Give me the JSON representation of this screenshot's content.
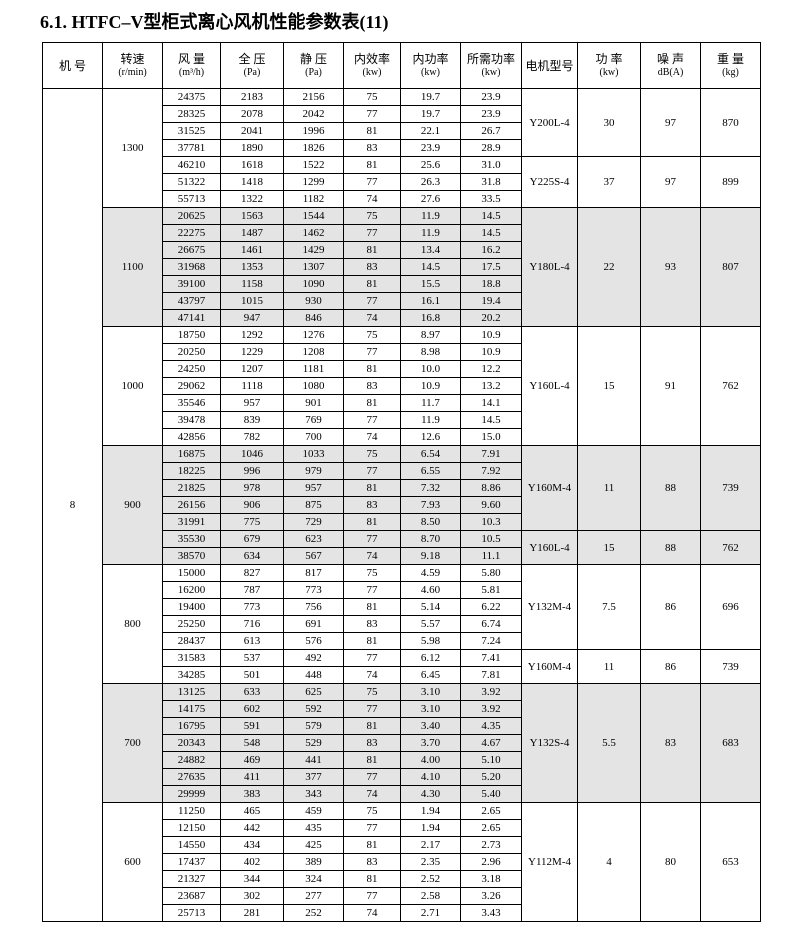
{
  "title": "6.1. HTFC–V型柜式离心风机性能参数表(11)",
  "table": {
    "header": [
      [
        "机 号"
      ],
      [
        "转速",
        "(r/min)"
      ],
      [
        "风 量",
        "(m³/h)"
      ],
      [
        "全 压",
        "(Pa)"
      ],
      [
        "静 压",
        "(Pa)"
      ],
      [
        "内效率",
        "(kw)"
      ],
      [
        "内功率",
        "(kw)"
      ],
      [
        "所需功率",
        "(kw)"
      ],
      [
        "电机型号"
      ],
      [
        "功 率",
        "(kw)"
      ],
      [
        "噪 声",
        "dB(A)"
      ],
      [
        "重 量",
        "(kg)"
      ]
    ],
    "machine": "8",
    "groups": [
      {
        "speed": "1300",
        "motors": [
          {
            "model": "Y200L-4",
            "power": "30",
            "noise": "97",
            "weight": "870",
            "rows": [
              [
                "24375",
                "2183",
                "2156",
                "75",
                "19.7",
                "23.9"
              ],
              [
                "28325",
                "2078",
                "2042",
                "77",
                "19.7",
                "23.9"
              ],
              [
                "31525",
                "2041",
                "1996",
                "81",
                "22.1",
                "26.7"
              ],
              [
                "37781",
                "1890",
                "1826",
                "83",
                "23.9",
                "28.9"
              ]
            ]
          },
          {
            "model": "Y225S-4",
            "power": "37",
            "noise": "97",
            "weight": "899",
            "rows": [
              [
                "46210",
                "1618",
                "1522",
                "81",
                "25.6",
                "31.0"
              ],
              [
                "51322",
                "1418",
                "1299",
                "77",
                "26.3",
                "31.8"
              ],
              [
                "55713",
                "1322",
                "1182",
                "74",
                "27.6",
                "33.5"
              ]
            ]
          }
        ]
      },
      {
        "speed": "1100",
        "motors": [
          {
            "model": "Y180L-4",
            "power": "22",
            "noise": "93",
            "weight": "807",
            "rows": [
              [
                "20625",
                "1563",
                "1544",
                "75",
                "11.9",
                "14.5"
              ],
              [
                "22275",
                "1487",
                "1462",
                "77",
                "11.9",
                "14.5"
              ],
              [
                "26675",
                "1461",
                "1429",
                "81",
                "13.4",
                "16.2"
              ],
              [
                "31968",
                "1353",
                "1307",
                "83",
                "14.5",
                "17.5"
              ],
              [
                "39100",
                "1158",
                "1090",
                "81",
                "15.5",
                "18.8"
              ],
              [
                "43797",
                "1015",
                "930",
                "77",
                "16.1",
                "19.4"
              ],
              [
                "47141",
                "947",
                "846",
                "74",
                "16.8",
                "20.2"
              ]
            ]
          }
        ]
      },
      {
        "speed": "1000",
        "motors": [
          {
            "model": "Y160L-4",
            "power": "15",
            "noise": "91",
            "weight": "762",
            "rows": [
              [
                "18750",
                "1292",
                "1276",
                "75",
                "8.97",
                "10.9"
              ],
              [
                "20250",
                "1229",
                "1208",
                "77",
                "8.98",
                "10.9"
              ],
              [
                "24250",
                "1207",
                "1181",
                "81",
                "10.0",
                "12.2"
              ],
              [
                "29062",
                "1118",
                "1080",
                "83",
                "10.9",
                "13.2"
              ],
              [
                "35546",
                "957",
                "901",
                "81",
                "11.7",
                "14.1"
              ],
              [
                "39478",
                "839",
                "769",
                "77",
                "11.9",
                "14.5"
              ],
              [
                "42856",
                "782",
                "700",
                "74",
                "12.6",
                "15.0"
              ]
            ]
          }
        ]
      },
      {
        "speed": "900",
        "motors": [
          {
            "model": "Y160M-4",
            "power": "11",
            "noise": "88",
            "weight": "739",
            "rows": [
              [
                "16875",
                "1046",
                "1033",
                "75",
                "6.54",
                "7.91"
              ],
              [
                "18225",
                "996",
                "979",
                "77",
                "6.55",
                "7.92"
              ],
              [
                "21825",
                "978",
                "957",
                "81",
                "7.32",
                "8.86"
              ],
              [
                "26156",
                "906",
                "875",
                "83",
                "7.93",
                "9.60"
              ],
              [
                "31991",
                "775",
                "729",
                "81",
                "8.50",
                "10.3"
              ]
            ]
          },
          {
            "model": "Y160L-4",
            "power": "15",
            "noise": "88",
            "weight": "762",
            "rows": [
              [
                "35530",
                "679",
                "623",
                "77",
                "8.70",
                "10.5"
              ],
              [
                "38570",
                "634",
                "567",
                "74",
                "9.18",
                "11.1"
              ]
            ]
          }
        ]
      },
      {
        "speed": "800",
        "motors": [
          {
            "model": "Y132M-4",
            "power": "7.5",
            "noise": "86",
            "weight": "696",
            "rows": [
              [
                "15000",
                "827",
                "817",
                "75",
                "4.59",
                "5.80"
              ],
              [
                "16200",
                "787",
                "773",
                "77",
                "4.60",
                "5.81"
              ],
              [
                "19400",
                "773",
                "756",
                "81",
                "5.14",
                "6.22"
              ],
              [
                "25250",
                "716",
                "691",
                "83",
                "5.57",
                "6.74"
              ],
              [
                "28437",
                "613",
                "576",
                "81",
                "5.98",
                "7.24"
              ]
            ]
          },
          {
            "model": "Y160M-4",
            "power": "11",
            "noise": "86",
            "weight": "739",
            "rows": [
              [
                "31583",
                "537",
                "492",
                "77",
                "6.12",
                "7.41"
              ],
              [
                "34285",
                "501",
                "448",
                "74",
                "6.45",
                "7.81"
              ]
            ]
          }
        ]
      },
      {
        "speed": "700",
        "motors": [
          {
            "model": "Y132S-4",
            "power": "5.5",
            "noise": "83",
            "weight": "683",
            "rows": [
              [
                "13125",
                "633",
                "625",
                "75",
                "3.10",
                "3.92"
              ],
              [
                "14175",
                "602",
                "592",
                "77",
                "3.10",
                "3.92"
              ],
              [
                "16795",
                "591",
                "579",
                "81",
                "3.40",
                "4.35"
              ],
              [
                "20343",
                "548",
                "529",
                "83",
                "3.70",
                "4.67"
              ],
              [
                "24882",
                "469",
                "441",
                "81",
                "4.00",
                "5.10"
              ],
              [
                "27635",
                "411",
                "377",
                "77",
                "4.10",
                "5.20"
              ],
              [
                "29999",
                "383",
                "343",
                "74",
                "4.30",
                "5.40"
              ]
            ]
          }
        ]
      },
      {
        "speed": "600",
        "motors": [
          {
            "model": "Y112M-4",
            "power": "4",
            "noise": "80",
            "weight": "653",
            "rows": [
              [
                "11250",
                "465",
                "459",
                "75",
                "1.94",
                "2.65"
              ],
              [
                "12150",
                "442",
                "435",
                "77",
                "1.94",
                "2.65"
              ],
              [
                "14550",
                "434",
                "425",
                "81",
                "2.17",
                "2.73"
              ],
              [
                "17437",
                "402",
                "389",
                "83",
                "2.35",
                "2.96"
              ],
              [
                "21327",
                "344",
                "324",
                "81",
                "2.52",
                "3.18"
              ],
              [
                "23687",
                "302",
                "277",
                "77",
                "2.58",
                "3.26"
              ],
              [
                "25713",
                "281",
                "252",
                "74",
                "2.71",
                "3.43"
              ]
            ]
          }
        ]
      }
    ]
  }
}
